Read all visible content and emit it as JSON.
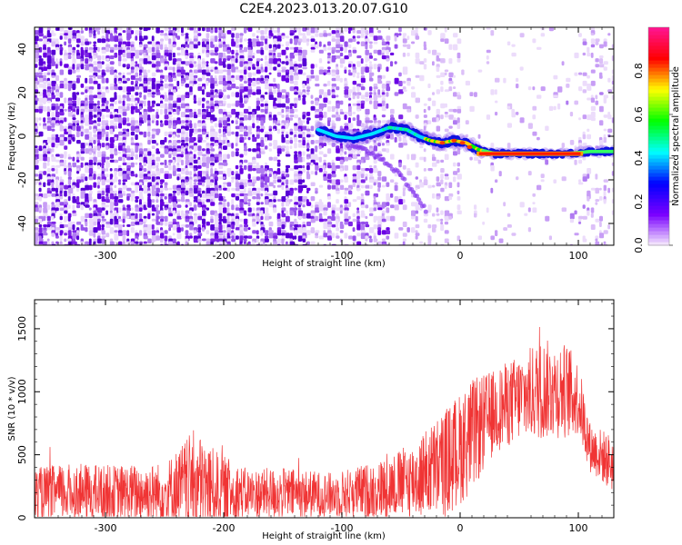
{
  "chart_data": [
    {
      "type": "heatmap",
      "title": "C2E4.2023.013.20.07.G10",
      "xlabel": "Height of straight line (km)",
      "ylabel": "Frequency (Hz)",
      "xlim": [
        -360,
        130
      ],
      "ylim": [
        -50,
        50
      ],
      "x_ticks": [
        -300,
        -200,
        -100,
        0,
        100
      ],
      "y_ticks": [
        -40,
        -20,
        0,
        20,
        40
      ],
      "colorbar": {
        "label": "Normalized spectral amplitude",
        "range": [
          0,
          1
        ],
        "ticks": [
          "0.0",
          "0.2",
          "0.4",
          "0.6",
          "0.8"
        ],
        "colormap": [
          "#f8eefc",
          "#7a00ff",
          "#0000ff",
          "#00ffff",
          "#00ff00",
          "#ffff00",
          "#ff0000",
          "#ff1493"
        ]
      },
      "ridge": [
        {
          "x": -120,
          "y": 3
        },
        {
          "x": -105,
          "y": 0
        },
        {
          "x": -90,
          "y": -1
        },
        {
          "x": -75,
          "y": 1
        },
        {
          "x": -60,
          "y": 4
        },
        {
          "x": -45,
          "y": 3
        },
        {
          "x": -35,
          "y": 0
        },
        {
          "x": -25,
          "y": -2
        },
        {
          "x": -15,
          "y": -3
        },
        {
          "x": -5,
          "y": -2
        },
        {
          "x": 5,
          "y": -3
        },
        {
          "x": 15,
          "y": -6
        },
        {
          "x": 30,
          "y": -8
        },
        {
          "x": 60,
          "y": -8
        },
        {
          "x": 90,
          "y": -8
        },
        {
          "x": 110,
          "y": -7
        },
        {
          "x": 130,
          "y": -7
        }
      ]
    },
    {
      "type": "line",
      "xlabel": "Height of straight line (km)",
      "ylabel": "SNR (10 * v/v)",
      "xlim": [
        -360,
        130
      ],
      "ylim": [
        0,
        1730
      ],
      "x_ticks": [
        -300,
        -200,
        -100,
        0,
        100
      ],
      "y_ticks": [
        0,
        500,
        1000,
        1500
      ],
      "color": "#f03434",
      "envelope": [
        {
          "x": -360,
          "base": 180,
          "amp": 220
        },
        {
          "x": -330,
          "base": 200,
          "amp": 230
        },
        {
          "x": -290,
          "base": 190,
          "amp": 230
        },
        {
          "x": -250,
          "base": 200,
          "amp": 240
        },
        {
          "x": -225,
          "base": 280,
          "amp": 420
        },
        {
          "x": -205,
          "base": 220,
          "amp": 300
        },
        {
          "x": -180,
          "base": 190,
          "amp": 200
        },
        {
          "x": -150,
          "base": 190,
          "amp": 210
        },
        {
          "x": -110,
          "base": 180,
          "amp": 180
        },
        {
          "x": -70,
          "base": 220,
          "amp": 230
        },
        {
          "x": -40,
          "base": 300,
          "amp": 300
        },
        {
          "x": -10,
          "base": 450,
          "amp": 450
        },
        {
          "x": 10,
          "base": 650,
          "amp": 450
        },
        {
          "x": 30,
          "base": 850,
          "amp": 330
        },
        {
          "x": 50,
          "base": 950,
          "amp": 350
        },
        {
          "x": 70,
          "base": 1020,
          "amp": 400
        },
        {
          "x": 90,
          "base": 1010,
          "amp": 380
        },
        {
          "x": 100,
          "base": 950,
          "amp": 300
        },
        {
          "x": 110,
          "base": 560,
          "amp": 200
        },
        {
          "x": 130,
          "base": 420,
          "amp": 230
        }
      ]
    }
  ]
}
